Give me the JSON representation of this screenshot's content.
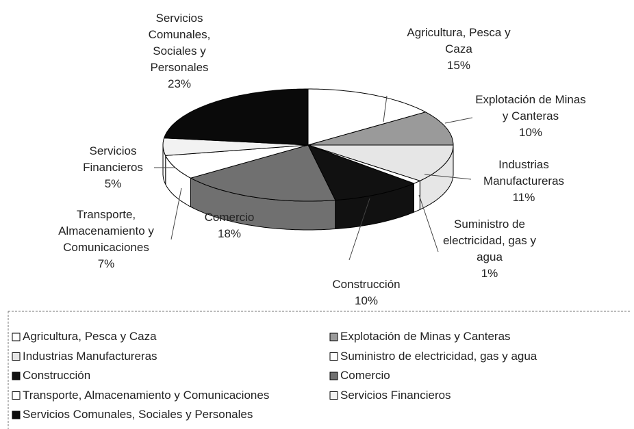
{
  "chart_data": {
    "type": "pie3d",
    "categories": [
      "Agricultura, Pesca y Caza",
      "Explotación de Minas y Canteras",
      "Industrias Manufactureras",
      "Suministro de electricidad, gas y agua",
      "Construcción",
      "Comercio",
      "Transporte, Almacenamiento y Comunicaciones",
      "Servicios Financieros",
      "Servicios Comunales, Sociales y Personales"
    ],
    "values": [
      15,
      10,
      11,
      1,
      10,
      18,
      7,
      5,
      23
    ],
    "value_labels": [
      "15%",
      "10%",
      "11%",
      "1%",
      "10%",
      "18%",
      "7%",
      "5%",
      "23%"
    ],
    "colors": [
      "#ffffff",
      "#9a9a9a",
      "#e6e6e6",
      "#ffffff",
      "#111111",
      "#707070",
      "#ffffff",
      "#f2f2f2",
      "#0a0a0a"
    ],
    "legend": "bottom"
  }
}
